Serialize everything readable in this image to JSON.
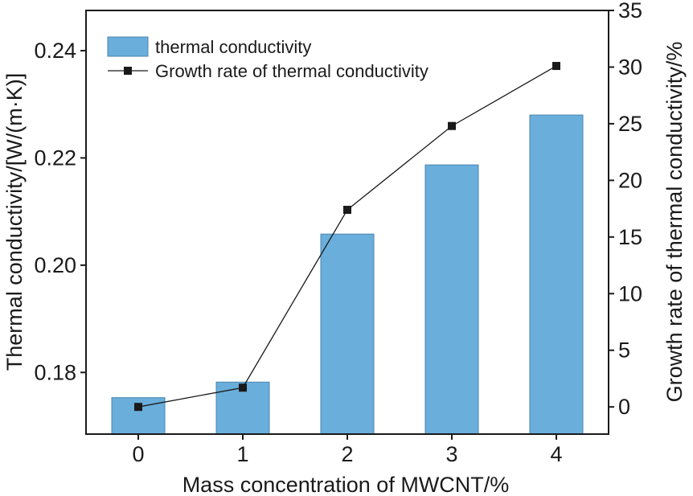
{
  "chart_data": {
    "type": "bar",
    "title": "",
    "xlabel": "Mass concentration of MWCNT/%",
    "ylabel": "Thermal conductivity/[W/(m·K)]",
    "y2label": "Growth rate of thermal conductivity/%",
    "categories": [
      "0",
      "1",
      "2",
      "3",
      "4"
    ],
    "ylim": [
      0.1685,
      0.2475
    ],
    "y2lim": [
      -2.4,
      35
    ],
    "yticks": [
      "0.18",
      "0.20",
      "0.22",
      "0.24"
    ],
    "y2ticks": [
      "0",
      "5",
      "10",
      "15",
      "20",
      "25",
      "30",
      "35"
    ],
    "legend_position": "top-left",
    "grid": false,
    "series": [
      {
        "name": "thermal conductivity",
        "type": "bar",
        "axis": "left",
        "color": "#6aaedb",
        "values": [
          0.1753,
          0.1782,
          0.2058,
          0.2187,
          0.228
        ]
      },
      {
        "name": "Growth rate of thermal conductivity",
        "type": "line",
        "axis": "right",
        "color": "#1a1a1a",
        "marker": "square",
        "values": [
          0.0,
          1.7,
          17.4,
          24.8,
          30.1
        ]
      }
    ]
  }
}
